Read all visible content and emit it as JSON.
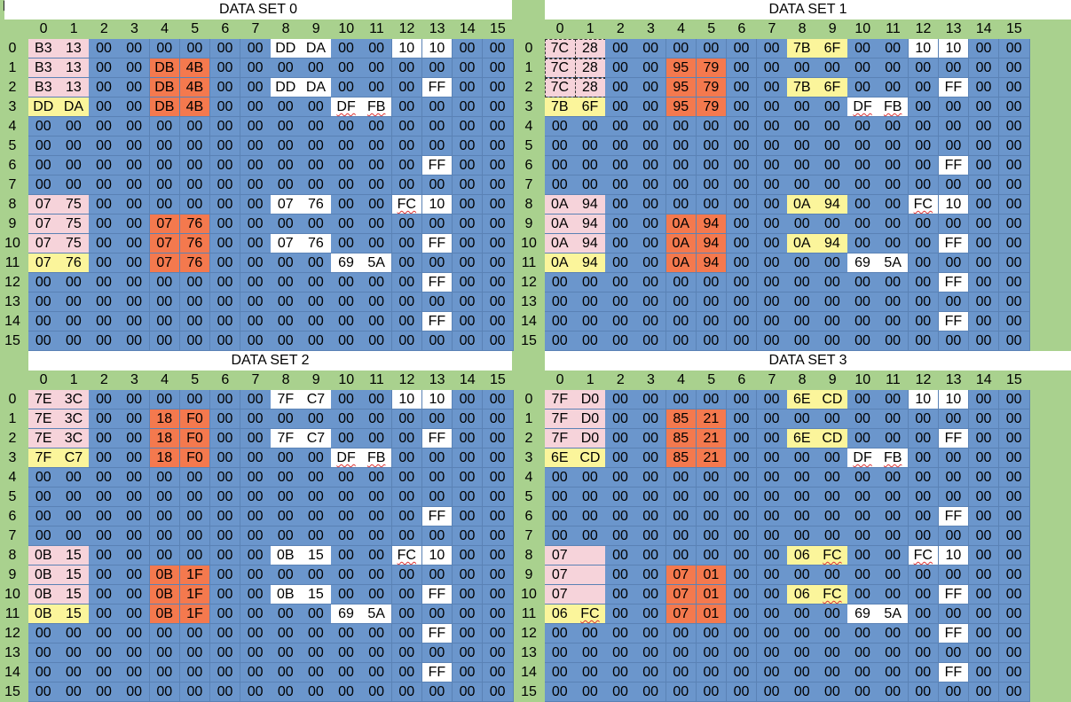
{
  "column_labels": [
    "0",
    "1",
    "2",
    "3",
    "4",
    "5",
    "6",
    "7",
    "8",
    "9",
    "10",
    "11",
    "12",
    "13",
    "14",
    "15"
  ],
  "row_labels": [
    "0",
    "1",
    "2",
    "3",
    "4",
    "5",
    "6",
    "7",
    "8",
    "9",
    "10",
    "11",
    "12",
    "13",
    "14",
    "15"
  ],
  "legend_colors": {
    "pink": "#f6d3da",
    "orange": "#f4794e",
    "yellow": "#fbf59b",
    "white": "#ffffff",
    "blue": "#6b96cc",
    "header_green": "#a9d18e"
  },
  "datasets": [
    {
      "title": "DATA SET 0",
      "rows": [
        [
          "B3",
          "13",
          "00",
          "00",
          "00",
          "00",
          "00",
          "00",
          "DD",
          "DA",
          "00",
          "00",
          "10",
          "10",
          "00",
          "00"
        ],
        [
          "B3",
          "13",
          "00",
          "00",
          "DB",
          "4B",
          "00",
          "00",
          "00",
          "00",
          "00",
          "00",
          "00",
          "00",
          "00",
          "00"
        ],
        [
          "B3",
          "13",
          "00",
          "00",
          "DB",
          "4B",
          "00",
          "00",
          "DD",
          "DA",
          "00",
          "00",
          "00",
          "FF",
          "00",
          "00"
        ],
        [
          "DD",
          "DA",
          "00",
          "00",
          "DB",
          "4B",
          "00",
          "00",
          "00",
          "00",
          "DF",
          "FB",
          "00",
          "00",
          "00",
          "00"
        ],
        [
          "00",
          "00",
          "00",
          "00",
          "00",
          "00",
          "00",
          "00",
          "00",
          "00",
          "00",
          "00",
          "00",
          "00",
          "00",
          "00"
        ],
        [
          "00",
          "00",
          "00",
          "00",
          "00",
          "00",
          "00",
          "00",
          "00",
          "00",
          "00",
          "00",
          "00",
          "00",
          "00",
          "00"
        ],
        [
          "00",
          "00",
          "00",
          "00",
          "00",
          "00",
          "00",
          "00",
          "00",
          "00",
          "00",
          "00",
          "00",
          "FF",
          "00",
          "00"
        ],
        [
          "00",
          "00",
          "00",
          "00",
          "00",
          "00",
          "00",
          "00",
          "00",
          "00",
          "00",
          "00",
          "00",
          "00",
          "00",
          "00"
        ],
        [
          "07",
          "75",
          "00",
          "00",
          "00",
          "00",
          "00",
          "00",
          "07",
          "76",
          "00",
          "00",
          "FC",
          "10",
          "00",
          "00"
        ],
        [
          "07",
          "75",
          "00",
          "00",
          "07",
          "76",
          "00",
          "00",
          "00",
          "00",
          "00",
          "00",
          "00",
          "00",
          "00",
          "00"
        ],
        [
          "07",
          "75",
          "00",
          "00",
          "07",
          "76",
          "00",
          "00",
          "07",
          "76",
          "00",
          "00",
          "00",
          "FF",
          "00",
          "00"
        ],
        [
          "07",
          "76",
          "00",
          "00",
          "07",
          "76",
          "00",
          "00",
          "00",
          "00",
          "69",
          "5A",
          "00",
          "00",
          "00",
          "00"
        ],
        [
          "00",
          "00",
          "00",
          "00",
          "00",
          "00",
          "00",
          "00",
          "00",
          "00",
          "00",
          "00",
          "00",
          "FF",
          "00",
          "00"
        ],
        [
          "00",
          "00",
          "00",
          "00",
          "00",
          "00",
          "00",
          "00",
          "00",
          "00",
          "00",
          "00",
          "00",
          "00",
          "00",
          "00"
        ],
        [
          "00",
          "00",
          "00",
          "00",
          "00",
          "00",
          "00",
          "00",
          "00",
          "00",
          "00",
          "00",
          "00",
          "FF",
          "00",
          "00"
        ],
        [
          "00",
          "00",
          "00",
          "00",
          "00",
          "00",
          "00",
          "00",
          "00",
          "00",
          "00",
          "00",
          "00",
          "00",
          "00",
          "00"
        ]
      ]
    },
    {
      "title": "DATA SET 1",
      "rows": [
        [
          "7C",
          "28",
          "00",
          "00",
          "00",
          "00",
          "00",
          "00",
          "7B",
          "6F",
          "00",
          "00",
          "10",
          "10",
          "00",
          "00"
        ],
        [
          "7C",
          "28",
          "00",
          "00",
          "95",
          "79",
          "00",
          "00",
          "00",
          "00",
          "00",
          "00",
          "00",
          "00",
          "00",
          "00"
        ],
        [
          "7C",
          "28",
          "00",
          "00",
          "95",
          "79",
          "00",
          "00",
          "7B",
          "6F",
          "00",
          "00",
          "00",
          "FF",
          "00",
          "00"
        ],
        [
          "7B",
          "6F",
          "00",
          "00",
          "95",
          "79",
          "00",
          "00",
          "00",
          "00",
          "DF",
          "FB",
          "00",
          "00",
          "00",
          "00"
        ],
        [
          "00",
          "00",
          "00",
          "00",
          "00",
          "00",
          "00",
          "00",
          "00",
          "00",
          "00",
          "00",
          "00",
          "00",
          "00",
          "00"
        ],
        [
          "00",
          "00",
          "00",
          "00",
          "00",
          "00",
          "00",
          "00",
          "00",
          "00",
          "00",
          "00",
          "00",
          "00",
          "00",
          "00"
        ],
        [
          "00",
          "00",
          "00",
          "00",
          "00",
          "00",
          "00",
          "00",
          "00",
          "00",
          "00",
          "00",
          "00",
          "FF",
          "00",
          "00"
        ],
        [
          "00",
          "00",
          "00",
          "00",
          "00",
          "00",
          "00",
          "00",
          "00",
          "00",
          "00",
          "00",
          "00",
          "00",
          "00",
          "00"
        ],
        [
          "0A",
          "94",
          "00",
          "00",
          "00",
          "00",
          "00",
          "00",
          "0A",
          "94",
          "00",
          "00",
          "FC",
          "10",
          "00",
          "00"
        ],
        [
          "0A",
          "94",
          "00",
          "00",
          "0A",
          "94",
          "00",
          "00",
          "00",
          "00",
          "00",
          "00",
          "00",
          "00",
          "00",
          "00"
        ],
        [
          "0A",
          "94",
          "00",
          "00",
          "0A",
          "94",
          "00",
          "00",
          "0A",
          "94",
          "00",
          "00",
          "00",
          "FF",
          "00",
          "00"
        ],
        [
          "0A",
          "94",
          "00",
          "00",
          "0A",
          "94",
          "00",
          "00",
          "00",
          "00",
          "69",
          "5A",
          "00",
          "00",
          "00",
          "00"
        ],
        [
          "00",
          "00",
          "00",
          "00",
          "00",
          "00",
          "00",
          "00",
          "00",
          "00",
          "00",
          "00",
          "00",
          "FF",
          "00",
          "00"
        ],
        [
          "00",
          "00",
          "00",
          "00",
          "00",
          "00",
          "00",
          "00",
          "00",
          "00",
          "00",
          "00",
          "00",
          "00",
          "00",
          "00"
        ],
        [
          "00",
          "00",
          "00",
          "00",
          "00",
          "00",
          "00",
          "00",
          "00",
          "00",
          "00",
          "00",
          "00",
          "FF",
          "00",
          "00"
        ],
        [
          "00",
          "00",
          "00",
          "00",
          "00",
          "00",
          "00",
          "00",
          "00",
          "00",
          "00",
          "00",
          "00",
          "00",
          "00",
          "00"
        ]
      ]
    },
    {
      "title": "DATA SET 2",
      "rows": [
        [
          "7E",
          "3C",
          "00",
          "00",
          "00",
          "00",
          "00",
          "00",
          "7F",
          "C7",
          "00",
          "00",
          "10",
          "10",
          "00",
          "00"
        ],
        [
          "7E",
          "3C",
          "00",
          "00",
          "18",
          "F0",
          "00",
          "00",
          "00",
          "00",
          "00",
          "00",
          "00",
          "00",
          "00",
          "00"
        ],
        [
          "7E",
          "3C",
          "00",
          "00",
          "18",
          "F0",
          "00",
          "00",
          "7F",
          "C7",
          "00",
          "00",
          "00",
          "FF",
          "00",
          "00"
        ],
        [
          "7F",
          "C7",
          "00",
          "00",
          "18",
          "F0",
          "00",
          "00",
          "00",
          "00",
          "DF",
          "FB",
          "00",
          "00",
          "00",
          "00"
        ],
        [
          "00",
          "00",
          "00",
          "00",
          "00",
          "00",
          "00",
          "00",
          "00",
          "00",
          "00",
          "00",
          "00",
          "00",
          "00",
          "00"
        ],
        [
          "00",
          "00",
          "00",
          "00",
          "00",
          "00",
          "00",
          "00",
          "00",
          "00",
          "00",
          "00",
          "00",
          "00",
          "00",
          "00"
        ],
        [
          "00",
          "00",
          "00",
          "00",
          "00",
          "00",
          "00",
          "00",
          "00",
          "00",
          "00",
          "00",
          "00",
          "FF",
          "00",
          "00"
        ],
        [
          "00",
          "00",
          "00",
          "00",
          "00",
          "00",
          "00",
          "00",
          "00",
          "00",
          "00",
          "00",
          "00",
          "00",
          "00",
          "00"
        ],
        [
          "0B",
          "15",
          "00",
          "00",
          "00",
          "00",
          "00",
          "00",
          "0B",
          "15",
          "00",
          "00",
          "FC",
          "10",
          "00",
          "00"
        ],
        [
          "0B",
          "15",
          "00",
          "00",
          "0B",
          "1F",
          "00",
          "00",
          "00",
          "00",
          "00",
          "00",
          "00",
          "00",
          "00",
          "00"
        ],
        [
          "0B",
          "15",
          "00",
          "00",
          "0B",
          "1F",
          "00",
          "00",
          "0B",
          "15",
          "00",
          "00",
          "00",
          "FF",
          "00",
          "00"
        ],
        [
          "0B",
          "15",
          "00",
          "00",
          "0B",
          "1F",
          "00",
          "00",
          "00",
          "00",
          "69",
          "5A",
          "00",
          "00",
          "00",
          "00"
        ],
        [
          "00",
          "00",
          "00",
          "00",
          "00",
          "00",
          "00",
          "00",
          "00",
          "00",
          "00",
          "00",
          "00",
          "FF",
          "00",
          "00"
        ],
        [
          "00",
          "00",
          "00",
          "00",
          "00",
          "00",
          "00",
          "00",
          "00",
          "00",
          "00",
          "00",
          "00",
          "00",
          "00",
          "00"
        ],
        [
          "00",
          "00",
          "00",
          "00",
          "00",
          "00",
          "00",
          "00",
          "00",
          "00",
          "00",
          "00",
          "00",
          "FF",
          "00",
          "00"
        ],
        [
          "00",
          "00",
          "00",
          "00",
          "00",
          "00",
          "00",
          "00",
          "00",
          "00",
          "00",
          "00",
          "00",
          "00",
          "00",
          "00"
        ]
      ]
    },
    {
      "title": "DATA SET 3",
      "rows": [
        [
          "7F",
          "D0",
          "00",
          "00",
          "00",
          "00",
          "00",
          "00",
          "6E",
          "CD",
          "00",
          "00",
          "10",
          "10",
          "00",
          "00"
        ],
        [
          "7F",
          "D0",
          "00",
          "00",
          "85",
          "21",
          "00",
          "00",
          "00",
          "00",
          "00",
          "00",
          "00",
          "00",
          "00",
          "00"
        ],
        [
          "7F",
          "D0",
          "00",
          "00",
          "85",
          "21",
          "00",
          "00",
          "6E",
          "CD",
          "00",
          "00",
          "00",
          "FF",
          "00",
          "00"
        ],
        [
          "6E",
          "CD",
          "00",
          "00",
          "85",
          "21",
          "00",
          "00",
          "00",
          "00",
          "DF",
          "FB",
          "00",
          "00",
          "00",
          "00"
        ],
        [
          "00",
          "00",
          "00",
          "00",
          "00",
          "00",
          "00",
          "00",
          "00",
          "00",
          "00",
          "00",
          "00",
          "00",
          "00",
          "00"
        ],
        [
          "00",
          "00",
          "00",
          "00",
          "00",
          "00",
          "00",
          "00",
          "00",
          "00",
          "00",
          "00",
          "00",
          "00",
          "00",
          "00"
        ],
        [
          "00",
          "00",
          "00",
          "00",
          "00",
          "00",
          "00",
          "00",
          "00",
          "00",
          "00",
          "00",
          "00",
          "FF",
          "00",
          "00"
        ],
        [
          "00",
          "00",
          "00",
          "00",
          "00",
          "00",
          "00",
          "00",
          "00",
          "00",
          "00",
          "00",
          "00",
          "00",
          "00",
          "00"
        ],
        [
          "07",
          "",
          "00",
          "00",
          "00",
          "00",
          "00",
          "00",
          "06",
          "FC",
          "00",
          "00",
          "FC",
          "10",
          "00",
          "00"
        ],
        [
          "07",
          "",
          "00",
          "00",
          "07",
          "01",
          "00",
          "00",
          "00",
          "00",
          "00",
          "00",
          "00",
          "00",
          "00",
          "00"
        ],
        [
          "07",
          "",
          "00",
          "00",
          "07",
          "01",
          "00",
          "00",
          "06",
          "FC",
          "00",
          "00",
          "00",
          "FF",
          "00",
          "00"
        ],
        [
          "06",
          "FC",
          "00",
          "00",
          "07",
          "01",
          "00",
          "00",
          "00",
          "00",
          "69",
          "5A",
          "00",
          "00",
          "00",
          "00"
        ],
        [
          "00",
          "00",
          "00",
          "00",
          "00",
          "00",
          "00",
          "00",
          "00",
          "00",
          "00",
          "00",
          "00",
          "FF",
          "00",
          "00"
        ],
        [
          "00",
          "00",
          "00",
          "00",
          "00",
          "00",
          "00",
          "00",
          "00",
          "00",
          "00",
          "00",
          "00",
          "00",
          "00",
          "00"
        ],
        [
          "00",
          "00",
          "00",
          "00",
          "00",
          "00",
          "00",
          "00",
          "00",
          "00",
          "00",
          "00",
          "00",
          "FF",
          "00",
          "00"
        ],
        [
          "00",
          "00",
          "00",
          "00",
          "00",
          "00",
          "00",
          "00",
          "00",
          "00",
          "00",
          "00",
          "00",
          "00",
          "00",
          "00"
        ]
      ]
    }
  ]
}
